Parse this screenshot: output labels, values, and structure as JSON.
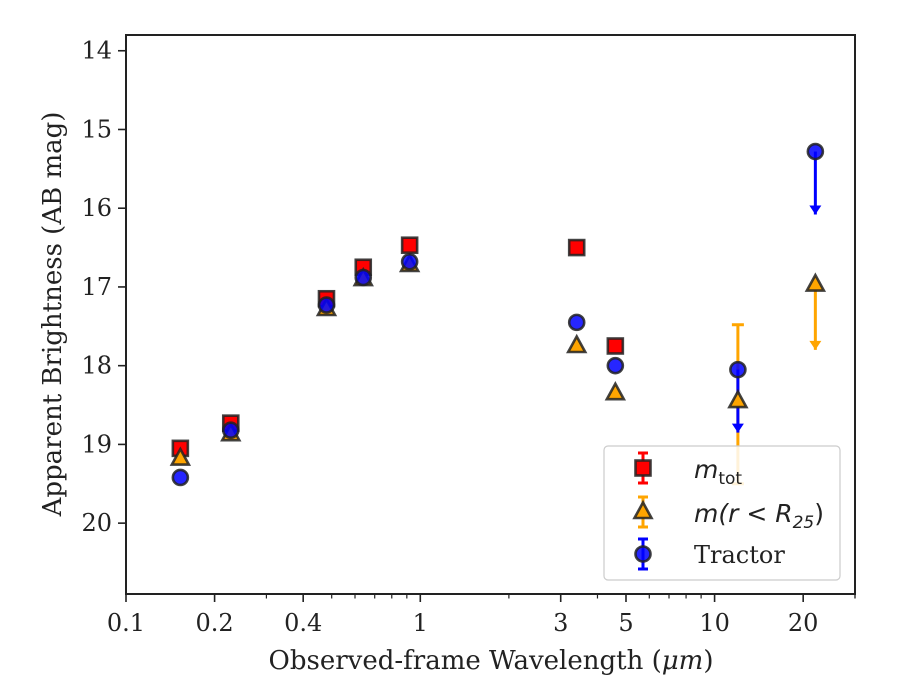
{
  "chart_data": {
    "type": "scatter",
    "xlabel_prefix": "Observed-frame Wavelength (",
    "xlabel_unit": "μm",
    "xlabel_suffix": ")",
    "ylabel": "Apparent Brightness (AB mag)",
    "xscale": "log",
    "xlim": [
      0.1,
      30
    ],
    "ylim": [
      20.9,
      13.8
    ],
    "y_inverted": true,
    "x_ticks": [
      {
        "value": 0.1,
        "label": "0.1"
      },
      {
        "value": 0.2,
        "label": "0.2"
      },
      {
        "value": 0.4,
        "label": "0.4"
      },
      {
        "value": 1,
        "label": "1"
      },
      {
        "value": 3,
        "label": "3"
      },
      {
        "value": 5,
        "label": "5"
      },
      {
        "value": 10,
        "label": "10"
      },
      {
        "value": 20,
        "label": "20"
      }
    ],
    "y_ticks": [
      {
        "value": 14,
        "label": "14"
      },
      {
        "value": 15,
        "label": "15"
      },
      {
        "value": 16,
        "label": "16"
      },
      {
        "value": 17,
        "label": "17"
      },
      {
        "value": 18,
        "label": "18"
      },
      {
        "value": 19,
        "label": "19"
      },
      {
        "value": 20,
        "label": "20"
      }
    ],
    "grid": false,
    "legend_position": "bottom-right",
    "series": [
      {
        "key": "mtot",
        "legend_main": "m",
        "legend_sub": "tot",
        "marker": "square",
        "color": "#ff0000",
        "points": [
          {
            "x": 0.153,
            "y": 19.05
          },
          {
            "x": 0.227,
            "y": 18.73
          },
          {
            "x": 0.48,
            "y": 17.15
          },
          {
            "x": 0.64,
            "y": 16.75
          },
          {
            "x": 0.92,
            "y": 16.47
          },
          {
            "x": 3.4,
            "y": 16.5
          },
          {
            "x": 4.6,
            "y": 17.75
          }
        ]
      },
      {
        "key": "mr25",
        "legend_main": "m(r < R",
        "legend_sub": "25",
        "legend_tail": ")",
        "marker": "triangle",
        "color": "#ffa500",
        "points": [
          {
            "x": 0.153,
            "y": 19.18
          },
          {
            "x": 0.227,
            "y": 18.87
          },
          {
            "x": 0.48,
            "y": 17.28
          },
          {
            "x": 0.64,
            "y": 16.9
          },
          {
            "x": 0.92,
            "y": 16.72
          },
          {
            "x": 3.4,
            "y": 17.75
          },
          {
            "x": 4.6,
            "y": 18.35
          },
          {
            "x": 12,
            "y": 18.45,
            "err_low": 17.48,
            "err_high": 19.5
          },
          {
            "x": 22,
            "y": 16.97,
            "upper_limit_to": 17.8
          }
        ]
      },
      {
        "key": "tractor",
        "legend_main": "Tractor",
        "marker": "circle",
        "color": "#0000ff",
        "points": [
          {
            "x": 0.153,
            "y": 19.42
          },
          {
            "x": 0.227,
            "y": 18.82
          },
          {
            "x": 0.48,
            "y": 17.23
          },
          {
            "x": 0.64,
            "y": 16.88
          },
          {
            "x": 0.92,
            "y": 16.68
          },
          {
            "x": 3.4,
            "y": 17.45
          },
          {
            "x": 4.6,
            "y": 18.0
          },
          {
            "x": 12,
            "y": 18.05,
            "upper_limit_to": 18.85
          },
          {
            "x": 22,
            "y": 15.28,
            "upper_limit_to": 16.08
          }
        ]
      }
    ]
  }
}
